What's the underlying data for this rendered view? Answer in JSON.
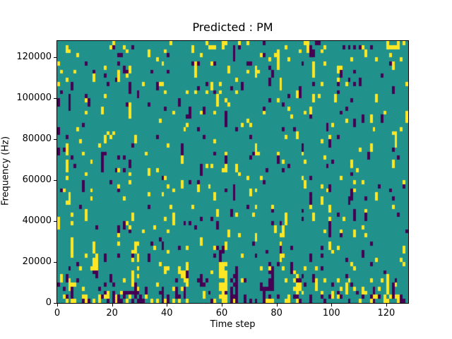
{
  "chart_data": {
    "type": "heatmap",
    "title": "Predicted : PM",
    "xlabel": "Time step",
    "ylabel": "Frequency (Hz)",
    "x_range": [
      0,
      128
    ],
    "y_range": [
      0,
      128000
    ],
    "x_ticks": [
      0,
      20,
      40,
      60,
      80,
      100,
      120
    ],
    "y_ticks": [
      0,
      20000,
      40000,
      60000,
      80000,
      100000,
      120000
    ],
    "grid": {
      "cols": 128,
      "rows": 64
    },
    "colors": {
      "background": "#21918c",
      "high": "#fde725",
      "low": "#440154",
      "spine": "#000000",
      "figure_background": "#ffffff"
    },
    "legend": "none",
    "gridlines": false,
    "density": {
      "yellow": 0.035,
      "purple": 0.028
    },
    "run_extend_probability": 0.28,
    "seed": 11,
    "clusters": [
      {
        "c0": 59,
        "r0": 0,
        "w": 3,
        "h": 10,
        "color": "high",
        "density": 0.75
      },
      {
        "c0": 63,
        "r0": 0,
        "w": 3,
        "h": 8,
        "color": "low",
        "density": 0.55
      },
      {
        "c0": 24,
        "r0": 0,
        "w": 8,
        "h": 3,
        "color": "low",
        "density": 0.55
      },
      {
        "c0": 27,
        "r0": 3,
        "w": 3,
        "h": 12,
        "color": "high",
        "density": 0.4
      },
      {
        "c0": 3,
        "r0": 0,
        "w": 8,
        "h": 2,
        "color": "high",
        "density": 0.45
      },
      {
        "c0": 74,
        "r0": 0,
        "w": 5,
        "h": 6,
        "color": "low",
        "density": 0.45
      },
      {
        "c0": 116,
        "r0": 0,
        "w": 10,
        "h": 2,
        "color": "high",
        "density": 0.4
      },
      {
        "c0": 54,
        "r0": 62,
        "w": 7,
        "h": 2,
        "color": "high",
        "density": 0.4
      },
      {
        "c0": 86,
        "r0": 0,
        "w": 3,
        "h": 8,
        "color": "high",
        "density": 0.4
      },
      {
        "c0": 120,
        "r0": 62,
        "w": 8,
        "h": 2,
        "color": "high",
        "density": 0.35
      }
    ]
  }
}
